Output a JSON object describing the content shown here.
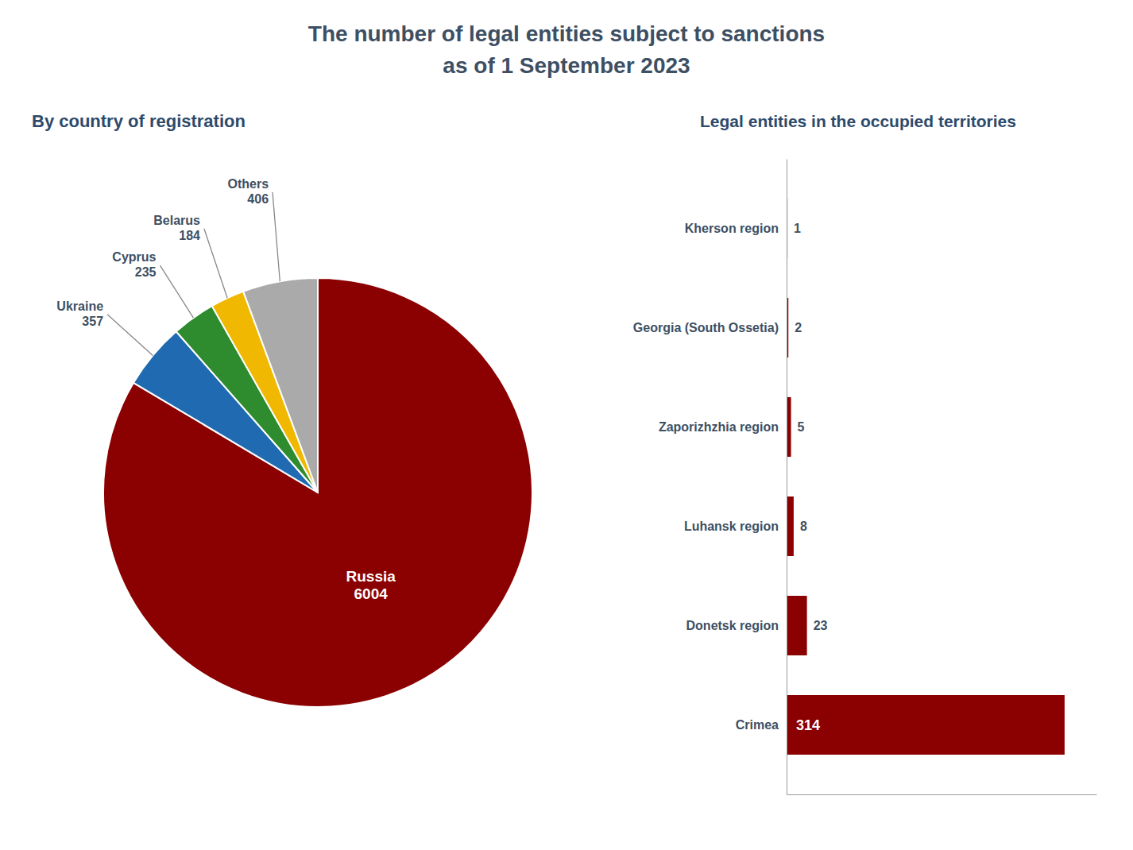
{
  "title": "The number of legal entities subject to sanctions",
  "subtitle": "as of 1 September 2023",
  "chart_data": [
    {
      "type": "pie",
      "title": "By country of registration",
      "categories": [
        "Russia",
        "Ukraine",
        "Cyprus",
        "Belarus",
        "Others"
      ],
      "values": [
        6004,
        357,
        235,
        184,
        406
      ],
      "colors": [
        "#8b0000",
        "#1f6ab0",
        "#2e8b2e",
        "#f0b800",
        "#aaaaaa"
      ],
      "data_labels": true
    },
    {
      "type": "bar",
      "orientation": "horizontal",
      "title": "Legal entities in the occupied territories",
      "categories": [
        "Kherson region",
        "Georgia (South Ossetia)",
        "Zaporizhzhia region",
        "Luhansk region",
        "Donetsk region",
        "Crimea"
      ],
      "values": [
        1,
        2,
        5,
        8,
        23,
        314
      ],
      "color": "#8b0000",
      "xlim": [
        0,
        350
      ],
      "tick_labels": "y",
      "data_labels": true
    }
  ]
}
